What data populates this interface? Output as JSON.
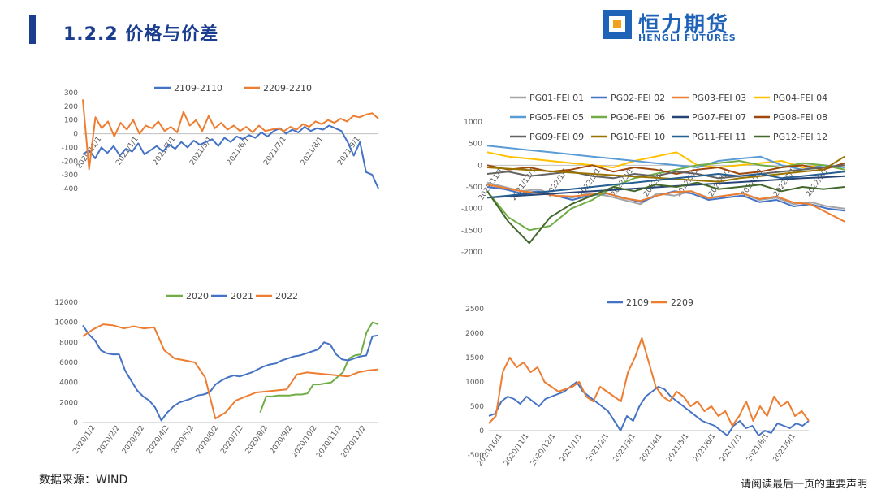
{
  "header": {
    "title": "1.2.2 价格与价差"
  },
  "logo": {
    "cn": "恒力期货",
    "en": "HENGLI FUTURES"
  },
  "footer": {
    "source": "数据来源：WIND",
    "disclaimer": "请阅读最后一页的重要声明"
  },
  "colors": {
    "blue": "#4472c4",
    "orange": "#ed7d31",
    "green": "#70ad47",
    "brand": "#1f63b8"
  },
  "chart_data": [
    {
      "id": "spread-top-left",
      "type": "line",
      "ylim": [
        -400,
        300
      ],
      "yticks": [
        -400,
        -300,
        -200,
        -100,
        0,
        100,
        200,
        300
      ],
      "xticks": [
        "2020/11/1",
        "2021/1/1",
        "2021/3/1",
        "2021/5/1",
        "2021/6/1",
        "2021/7/1",
        "2021/8/1",
        "2021/9/1"
      ],
      "grid": false,
      "legend_position": "top",
      "series": [
        {
          "name": "2109-2110",
          "color": "#4472c4",
          "values": [
            -150,
            -120,
            -180,
            -100,
            -140,
            -90,
            -160,
            -110,
            -130,
            -70,
            -150,
            -120,
            -90,
            -130,
            -80,
            -110,
            -60,
            -100,
            -50,
            -80,
            -60,
            -40,
            -90,
            -30,
            -60,
            -20,
            -40,
            -10,
            -30,
            10,
            -20,
            20,
            40,
            0,
            30,
            10,
            50,
            20,
            40,
            30,
            60,
            40,
            20,
            -60,
            -160,
            -60,
            -280,
            -300,
            -400
          ]
        },
        {
          "name": "2209-2210",
          "color": "#ed7d31",
          "values": [
            250,
            -260,
            120,
            40,
            90,
            -20,
            80,
            30,
            100,
            0,
            60,
            40,
            90,
            20,
            50,
            10,
            160,
            60,
            100,
            20,
            130,
            40,
            80,
            30,
            60,
            20,
            50,
            10,
            60,
            20,
            30,
            40,
            20,
            50,
            30,
            70,
            50,
            90,
            70,
            100,
            80,
            110,
            90,
            130,
            120,
            140,
            150,
            110
          ]
        }
      ]
    },
    {
      "id": "spread-top-right",
      "type": "line",
      "ylim": [
        -2000,
        1000
      ],
      "yticks": [
        -2000,
        -1500,
        -1000,
        -500,
        0,
        500,
        1000
      ],
      "xticks": [
        "2021/11/1",
        "2021/12/1",
        "2022/1/1",
        "2022/2/1",
        "2022/3/1",
        "2022/4/1",
        "2022/5/1",
        "2022/6/1",
        "2022/7/1",
        "2022/8/1",
        "2022/9/1"
      ],
      "grid": false,
      "legend_position": "top",
      "series": [
        {
          "name": "PG01-FEI 01",
          "color": "#a5a5a5",
          "values": [
            -400,
            -500,
            -600,
            -550,
            -700,
            -750,
            -650,
            -700,
            -800,
            -900,
            -650,
            -700,
            -600,
            -750,
            -700,
            -650,
            -800,
            -750,
            -900,
            -850,
            -950,
            -1000
          ]
        },
        {
          "name": "PG02-FEI 02",
          "color": "#4472c4",
          "values": [
            -500,
            -550,
            -650,
            -600,
            -700,
            -800,
            -700,
            -650,
            -750,
            -850,
            -700,
            -600,
            -650,
            -800,
            -750,
            -700,
            -850,
            -800,
            -950,
            -900,
            -1000,
            -1050
          ]
        },
        {
          "name": "PG03-FEI 03",
          "color": "#ed7d31",
          "values": [
            -450,
            -520,
            -600,
            -640,
            -700,
            -720,
            -680,
            -640,
            -760,
            -820,
            -700,
            -620,
            -600,
            -760,
            -700,
            -650,
            -780,
            -720,
            -860,
            -900,
            -1100,
            -1300
          ]
        },
        {
          "name": "PG04-FEI 04",
          "color": "#ffc000",
          "values": [
            300,
            200,
            150,
            100,
            50,
            0,
            -50,
            100,
            200,
            300,
            0,
            -50,
            0,
            50,
            100,
            -50,
            0,
            -100
          ]
        },
        {
          "name": "PG05-FEI 05",
          "color": "#5b9bd5",
          "values": [
            450,
            400,
            350,
            300,
            250,
            200,
            150,
            100,
            50,
            0,
            -50,
            100,
            150,
            200,
            0,
            -100,
            0,
            -50
          ]
        },
        {
          "name": "PG06-FEI 06",
          "color": "#70ad47",
          "values": [
            -600,
            -1200,
            -1500,
            -1400,
            -1000,
            -800,
            -500,
            -300,
            -200,
            -100,
            0,
            50,
            100,
            0,
            -50,
            50,
            0,
            -100
          ]
        },
        {
          "name": "PG07-FEI 07",
          "color": "#264478",
          "values": [
            -750,
            -720,
            -690,
            -660,
            -630,
            -600,
            -570,
            -540,
            -510,
            -480,
            -450,
            -420,
            -390,
            -360,
            -330,
            -300,
            -280,
            -250
          ]
        },
        {
          "name": "PG08-FEI 08",
          "color": "#9e480e",
          "values": [
            0,
            -100,
            -50,
            -150,
            -100,
            0,
            -150,
            -50,
            -100,
            -200,
            -100,
            -50,
            -200,
            -150,
            -50,
            0,
            -100,
            50
          ]
        },
        {
          "name": "PG09-FEI 09",
          "color": "#636363",
          "values": [
            -200,
            -150,
            -250,
            -200,
            -150,
            -250,
            -300,
            -200,
            -250,
            -150,
            -200,
            -300,
            -250,
            -200,
            -150,
            -100,
            -50,
            0
          ]
        },
        {
          "name": "PG10-FEI 10",
          "color": "#997300",
          "values": [
            -50,
            -80,
            -110,
            -140,
            -170,
            -200,
            -230,
            -260,
            -290,
            -320,
            -350,
            -380,
            -300,
            -250,
            -200,
            -150,
            -100,
            200
          ]
        },
        {
          "name": "PG11-FEI 11",
          "color": "#255e91",
          "values": [
            -750,
            -700,
            -650,
            -600,
            -550,
            -500,
            -450,
            -400,
            -350,
            -300,
            -250,
            -200,
            -250,
            -200,
            -300,
            -250,
            -200,
            -150
          ]
        },
        {
          "name": "PG12-FEI 12",
          "color": "#43682b",
          "values": [
            -600,
            -1300,
            -1800,
            -1200,
            -900,
            -700,
            -500,
            -600,
            -450,
            -500,
            -400,
            -550,
            -500,
            -450,
            -600,
            -500,
            -550,
            -500
          ]
        }
      ]
    },
    {
      "id": "price-bottom-left",
      "type": "line",
      "ylim": [
        0,
        12000
      ],
      "yticks": [
        0,
        2000,
        4000,
        6000,
        8000,
        10000,
        12000
      ],
      "xticks": [
        "2020/1/2",
        "2020/2/2",
        "2020/3/2",
        "2020/4/2",
        "2020/5/2",
        "2020/6/2",
        "2020/7/2",
        "2020/8/2",
        "2020/9/2",
        "2020/10/2",
        "2020/11/2",
        "2020/12/2"
      ],
      "grid": false,
      "legend_position": "top",
      "series": [
        {
          "name": "2020",
          "color": "#70ad47",
          "values": [
            null,
            null,
            null,
            null,
            null,
            null,
            null,
            null,
            null,
            null,
            null,
            null,
            null,
            null,
            null,
            null,
            null,
            null,
            null,
            null,
            null,
            null,
            null,
            null,
            null,
            null,
            null,
            null,
            null,
            null,
            1000,
            2600,
            2600,
            2700,
            2700,
            2700,
            2800,
            2800,
            2900,
            3800,
            3800,
            3900,
            4000,
            4500,
            5000,
            6400,
            6700,
            6800,
            9000,
            10000,
            9800
          ]
        },
        {
          "name": "2021",
          "color": "#4472c4",
          "values": [
            9700,
            8800,
            8200,
            7200,
            6900,
            6800,
            6800,
            5200,
            4200,
            3200,
            2600,
            2200,
            1500,
            200,
            1000,
            1600,
            2000,
            2200,
            2400,
            2700,
            2800,
            3000,
            3800,
            4200,
            4500,
            4700,
            4600,
            4800,
            5000,
            5300,
            5600,
            5800,
            5900,
            6200,
            6400,
            6600,
            6700,
            6900,
            7100,
            7300,
            8000,
            7800,
            6800,
            6300,
            6200,
            6400,
            6600,
            6700,
            8600,
            8700
          ]
        },
        {
          "name": "2022",
          "color": "#ed7d31",
          "values": [
            8600,
            9300,
            9800,
            9700,
            9400,
            9600,
            9400,
            9500,
            7200,
            6400,
            6200,
            6000,
            4500,
            400,
            1000,
            2200,
            2600,
            3000,
            3100,
            3200,
            3300,
            4800,
            5000,
            4900,
            4800,
            4700,
            4600,
            5000,
            5200,
            5300
          ]
        }
      ]
    },
    {
      "id": "basis-bottom-right",
      "type": "line",
      "ylim": [
        -500,
        2500
      ],
      "yticks": [
        -500,
        0,
        500,
        1000,
        1500,
        2000,
        2500
      ],
      "xticks": [
        "2020/10/1",
        "2020/11/1",
        "2020/12/1",
        "2021/1/1",
        "2021/2/1",
        "2021/3/1",
        "2021/4/1",
        "2021/5/1",
        "2021/6/1",
        "2021/7/1",
        "2021/8/1",
        "2021/9/1"
      ],
      "grid": false,
      "legend_position": "top",
      "series": [
        {
          "name": "2109",
          "color": "#4472c4",
          "values": [
            300,
            350,
            600,
            700,
            650,
            550,
            700,
            600,
            500,
            650,
            700,
            750,
            800,
            900,
            1000,
            800,
            700,
            600,
            500,
            400,
            200,
            0,
            300,
            200,
            500,
            700,
            800,
            900,
            850,
            700,
            600,
            500,
            400,
            300,
            200,
            150,
            100,
            0,
            -100,
            100,
            200,
            50,
            100,
            -100,
            0,
            -50,
            150,
            100,
            50,
            150,
            100,
            200
          ]
        },
        {
          "name": "2209",
          "color": "#ed7d31",
          "values": [
            150,
            300,
            1200,
            1500,
            1300,
            1400,
            1200,
            1300,
            1000,
            900,
            800,
            850,
            900,
            1000,
            700,
            600,
            900,
            800,
            700,
            600,
            1200,
            1500,
            1900,
            1400,
            900,
            700,
            600,
            800,
            700,
            500,
            600,
            400,
            500,
            300,
            400,
            100,
            300,
            600,
            200,
            500,
            300,
            700,
            500,
            600,
            300,
            400,
            200
          ]
        }
      ]
    }
  ]
}
